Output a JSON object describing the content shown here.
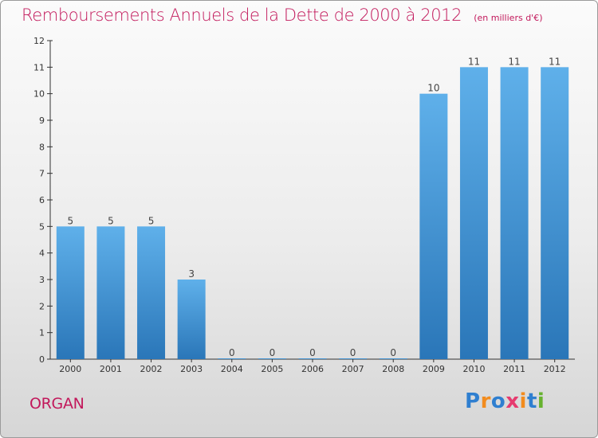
{
  "chart_data": {
    "type": "bar",
    "title": "Remboursements Annuels de la Dette de 2000 à 2012",
    "subtitle": "(en milliers d'€)",
    "categories": [
      "2000",
      "2001",
      "2002",
      "2003",
      "2004",
      "2005",
      "2006",
      "2007",
      "2008",
      "2009",
      "2010",
      "2011",
      "2012"
    ],
    "values": [
      5,
      5,
      5,
      3,
      0,
      0,
      0,
      0,
      0,
      10,
      11,
      11,
      11
    ],
    "ylim": [
      0,
      12
    ],
    "yticks": [
      0,
      1,
      2,
      3,
      4,
      5,
      6,
      7,
      8,
      9,
      10,
      11,
      12
    ],
    "xlabel": "",
    "ylabel": "",
    "grid": false,
    "bar_color": "#3a8fd8"
  },
  "footer": {
    "commune": "ORGAN",
    "logo_text": "Proxiti",
    "logo_colors": [
      "#2f7fd0",
      "#f28c1e",
      "#2f7fd0",
      "#e63b6f",
      "#f28c1e",
      "#2f7fd0",
      "#67b22f"
    ]
  },
  "colors": {
    "title": "#c2185b",
    "axis": "#333333"
  }
}
